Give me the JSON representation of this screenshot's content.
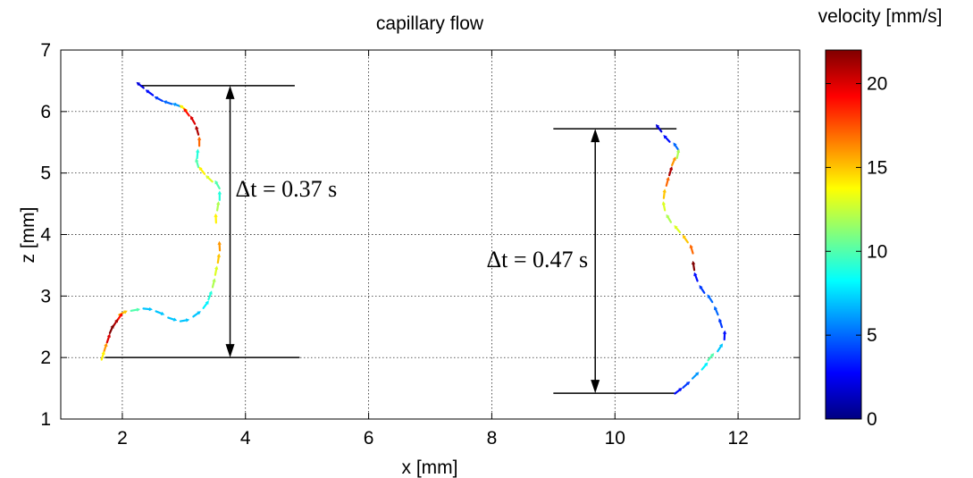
{
  "chart_data": {
    "type": "scatter",
    "title": "capillary flow",
    "xlabel": "x [mm]",
    "ylabel": "z [mm]",
    "xlim": [
      1,
      13
    ],
    "ylim": [
      1,
      7
    ],
    "xticks": [
      2,
      4,
      6,
      8,
      10,
      12
    ],
    "yticks": [
      1,
      2,
      3,
      4,
      5,
      6,
      7
    ],
    "grid": true,
    "colorbar": {
      "label": "velocity [mm/s]",
      "min": 0,
      "max": 22,
      "ticks": [
        0,
        5,
        10,
        15,
        20
      ],
      "colormap": "jet"
    },
    "annotations": [
      {
        "text": "Δt = 0.37 s",
        "x_range": [
          2.3,
          4.8
        ],
        "z_top": 6.42,
        "z_bottom": 2.0
      },
      {
        "text": "Δt = 0.47 s",
        "x_range": [
          9.0,
          11.0
        ],
        "z_top": 5.72,
        "z_bottom": 1.42
      }
    ],
    "series": [
      {
        "points": [
          [
            2.3,
            6.42,
            2
          ],
          [
            2.45,
            6.3,
            3
          ],
          [
            2.6,
            6.2,
            4
          ],
          [
            2.75,
            6.14,
            5
          ],
          [
            2.9,
            6.1,
            6
          ],
          [
            3.0,
            6.05,
            14
          ],
          [
            3.05,
            5.98,
            19
          ],
          [
            3.15,
            5.85,
            20
          ],
          [
            3.22,
            5.68,
            21
          ],
          [
            3.25,
            5.5,
            17
          ],
          [
            3.22,
            5.3,
            9
          ],
          [
            3.22,
            5.15,
            10
          ],
          [
            3.3,
            5.03,
            14
          ],
          [
            3.42,
            4.9,
            13
          ],
          [
            3.55,
            4.8,
            10
          ],
          [
            3.58,
            4.62,
            9
          ],
          [
            3.55,
            4.45,
            12
          ],
          [
            3.52,
            4.25,
            14
          ],
          [
            3.58,
            3.8,
            16
          ],
          [
            3.56,
            3.6,
            15
          ],
          [
            3.52,
            3.4,
            13
          ],
          [
            3.48,
            3.2,
            12
          ],
          [
            3.42,
            3.0,
            9
          ],
          [
            3.35,
            2.85,
            8
          ],
          [
            3.2,
            2.7,
            7
          ],
          [
            3.0,
            2.6,
            7
          ],
          [
            2.8,
            2.63,
            7
          ],
          [
            2.6,
            2.73,
            7
          ],
          [
            2.4,
            2.79,
            7
          ],
          [
            2.2,
            2.77,
            10
          ],
          [
            2.0,
            2.72,
            15
          ],
          [
            1.95,
            2.65,
            19
          ],
          [
            1.88,
            2.55,
            21
          ],
          [
            1.82,
            2.45,
            22
          ],
          [
            1.77,
            2.3,
            20
          ],
          [
            1.72,
            2.15,
            16
          ],
          [
            1.68,
            2.02,
            14
          ]
        ]
      },
      {
        "points": [
          [
            10.72,
            5.72,
            2
          ],
          [
            10.85,
            5.55,
            3
          ],
          [
            11.0,
            5.42,
            5
          ],
          [
            11.02,
            5.3,
            12
          ],
          [
            10.95,
            5.18,
            16
          ],
          [
            10.9,
            5.02,
            21
          ],
          [
            10.85,
            4.85,
            17
          ],
          [
            10.8,
            4.65,
            15
          ],
          [
            10.8,
            4.45,
            13
          ],
          [
            10.88,
            4.25,
            12
          ],
          [
            11.02,
            4.08,
            13
          ],
          [
            11.15,
            3.92,
            15
          ],
          [
            11.25,
            3.75,
            17
          ],
          [
            11.28,
            3.48,
            22
          ],
          [
            11.32,
            3.3,
            3
          ],
          [
            11.42,
            3.1,
            4
          ],
          [
            11.55,
            2.95,
            5
          ],
          [
            11.65,
            2.75,
            5
          ],
          [
            11.72,
            2.55,
            4
          ],
          [
            11.78,
            2.35,
            3
          ],
          [
            11.7,
            2.15,
            7
          ],
          [
            11.55,
            2.0,
            10
          ],
          [
            11.45,
            1.85,
            8
          ],
          [
            11.3,
            1.7,
            6
          ],
          [
            11.15,
            1.55,
            4
          ],
          [
            11.02,
            1.45,
            3
          ]
        ]
      }
    ]
  }
}
